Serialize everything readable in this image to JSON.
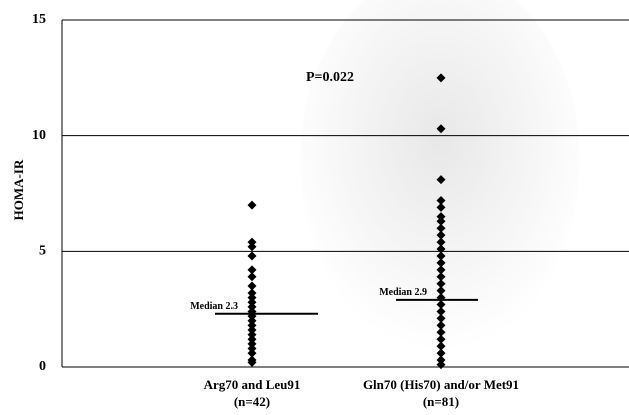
{
  "chart_data": {
    "type": "strip",
    "y_label": "HOMA-IR",
    "categories": [
      "Arg70 and Leu91",
      "Gln70 (His70) and/or Met91"
    ],
    "category_notes": [
      "(n=42)",
      "(n=81)"
    ],
    "groups": [
      [
        7.0,
        5.4,
        5.2,
        4.8,
        4.2,
        3.9,
        3.5,
        3.2,
        3.0,
        2.8,
        2.6,
        2.4,
        2.2,
        2.0,
        1.8,
        1.6,
        1.4,
        1.2,
        1.0,
        0.8,
        0.6,
        0.3,
        0.2
      ],
      [
        12.5,
        10.3,
        8.1,
        7.2,
        6.9,
        6.5,
        6.3,
        6.0,
        5.7,
        5.4,
        5.1,
        4.8,
        4.5,
        4.2,
        3.9,
        3.6,
        3.3,
        3.0,
        2.7,
        2.4,
        2.1,
        1.8,
        1.5,
        1.2,
        0.9,
        0.6,
        0.3,
        0.1
      ]
    ],
    "medians": [
      {
        "value": 2.3,
        "label": "Median 2.3"
      },
      {
        "value": 2.9,
        "label": "Median 2.9"
      }
    ],
    "annotation": "P=0.022",
    "color": "#000000",
    "ylim": [
      0,
      15
    ],
    "yticks": [
      0,
      5,
      10,
      15
    ],
    "grid": true
  }
}
